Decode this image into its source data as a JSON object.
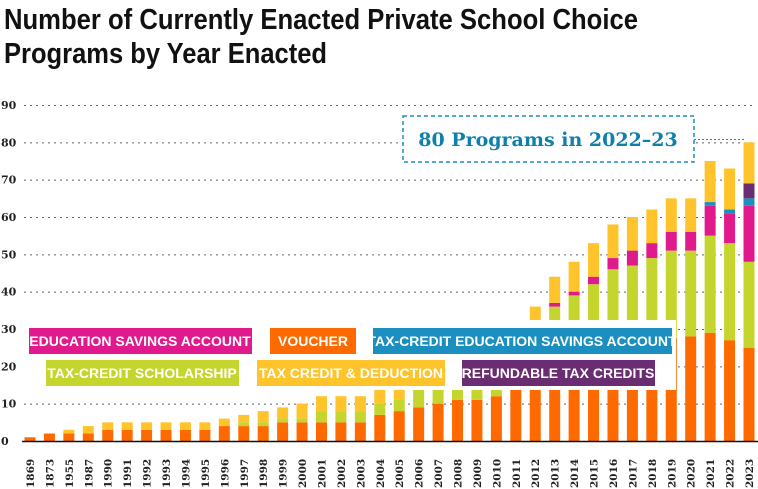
{
  "chart_data": {
    "type": "bar",
    "stacked": true,
    "title_lines": [
      "Number of Currently Enacted Private School Choice",
      "Programs by Year Enacted"
    ],
    "annotation": "80 Programs in 2022–23",
    "ylim": [
      0,
      90
    ],
    "yticks": [
      0,
      10,
      20,
      30,
      40,
      50,
      60,
      70,
      80,
      90
    ],
    "grid": true,
    "categories": [
      "1869",
      "1873",
      "1955",
      "1987",
      "1990",
      "1991",
      "1992",
      "1993",
      "1994",
      "1995",
      "1996",
      "1997",
      "1998",
      "1999",
      "2000",
      "2001",
      "2002",
      "2003",
      "2004",
      "2005",
      "2006",
      "2007",
      "2008",
      "2009",
      "2010",
      "2011",
      "2012",
      "2013",
      "2014",
      "2015",
      "2016",
      "2017",
      "2018",
      "2019",
      "2020",
      "2021",
      "2022",
      "2023"
    ],
    "series": [
      {
        "name": "VOUCHER",
        "color": "#ff6a00",
        "values": [
          1,
          2,
          2,
          2,
          3,
          3,
          3,
          3,
          3,
          3,
          4,
          4,
          4,
          5,
          5,
          5,
          5,
          5,
          7,
          8,
          9,
          10,
          11,
          11,
          12,
          14,
          16,
          17,
          19,
          20,
          21,
          22,
          24,
          28,
          28,
          29,
          27,
          25
        ]
      },
      {
        "name": "TAX-CREDIT SCHOLARSHIP",
        "color": "#c4d52e",
        "values": [
          0,
          0,
          0,
          0,
          0,
          0,
          0,
          0,
          0,
          0,
          0,
          1,
          1,
          1,
          1,
          3,
          3,
          3,
          3,
          3,
          5,
          5,
          4,
          4,
          3,
          3,
          14,
          19,
          20,
          22,
          25,
          25,
          25,
          23,
          23,
          26,
          26,
          23
        ]
      },
      {
        "name": "EDUCATION SAVINGS ACCOUNT",
        "color": "#e0198c",
        "values": [
          0,
          0,
          0,
          0,
          0,
          0,
          0,
          0,
          0,
          0,
          0,
          0,
          0,
          0,
          0,
          0,
          0,
          0,
          0,
          0,
          0,
          0,
          0,
          0,
          0,
          0,
          0,
          1,
          1,
          2,
          3,
          4,
          4,
          5,
          5,
          8,
          8,
          15
        ]
      },
      {
        "name": "TAX-CREDIT EDUCATION SAVINGS ACCOUNT",
        "color": "#1a8fc0",
        "values": [
          0,
          0,
          0,
          0,
          0,
          0,
          0,
          0,
          0,
          0,
          0,
          0,
          0,
          0,
          0,
          0,
          0,
          0,
          0,
          0,
          0,
          0,
          0,
          0,
          0,
          0,
          0,
          0,
          0,
          0,
          0,
          0,
          0,
          0,
          0,
          1,
          1,
          2
        ]
      },
      {
        "name": "REFUNDABLE TAX CREDITS",
        "color": "#6a2d72",
        "values": [
          0,
          0,
          0,
          0,
          0,
          0,
          0,
          0,
          0,
          0,
          0,
          0,
          0,
          0,
          0,
          0,
          0,
          0,
          0,
          0,
          0,
          0,
          0,
          0,
          0,
          0,
          0,
          0,
          0,
          0,
          0,
          0,
          0,
          0,
          0,
          0,
          0,
          4
        ]
      },
      {
        "name": "TAX CREDIT & DEDUCTION",
        "color": "#ffc42b",
        "values": [
          0,
          0,
          1,
          2,
          2,
          2,
          2,
          2,
          2,
          2,
          2,
          2,
          3,
          3,
          4,
          4,
          4,
          4,
          4,
          4,
          1,
          0,
          0,
          0,
          0,
          0,
          6,
          7,
          8,
          9,
          9,
          9,
          9,
          9,
          9,
          11,
          11,
          11
        ]
      }
    ],
    "legend": {
      "esa": "EDUCATION SAVINGS ACCOUNT",
      "voucher": "VOUCHER",
      "tcesa": "TAX-CREDIT EDUCATION SAVINGS ACCOUNT",
      "tcs": "TAX-CREDIT SCHOLARSHIP",
      "tcd": "TAX CREDIT & DEDUCTION",
      "rtc": "REFUNDABLE TAX CREDITS"
    }
  }
}
